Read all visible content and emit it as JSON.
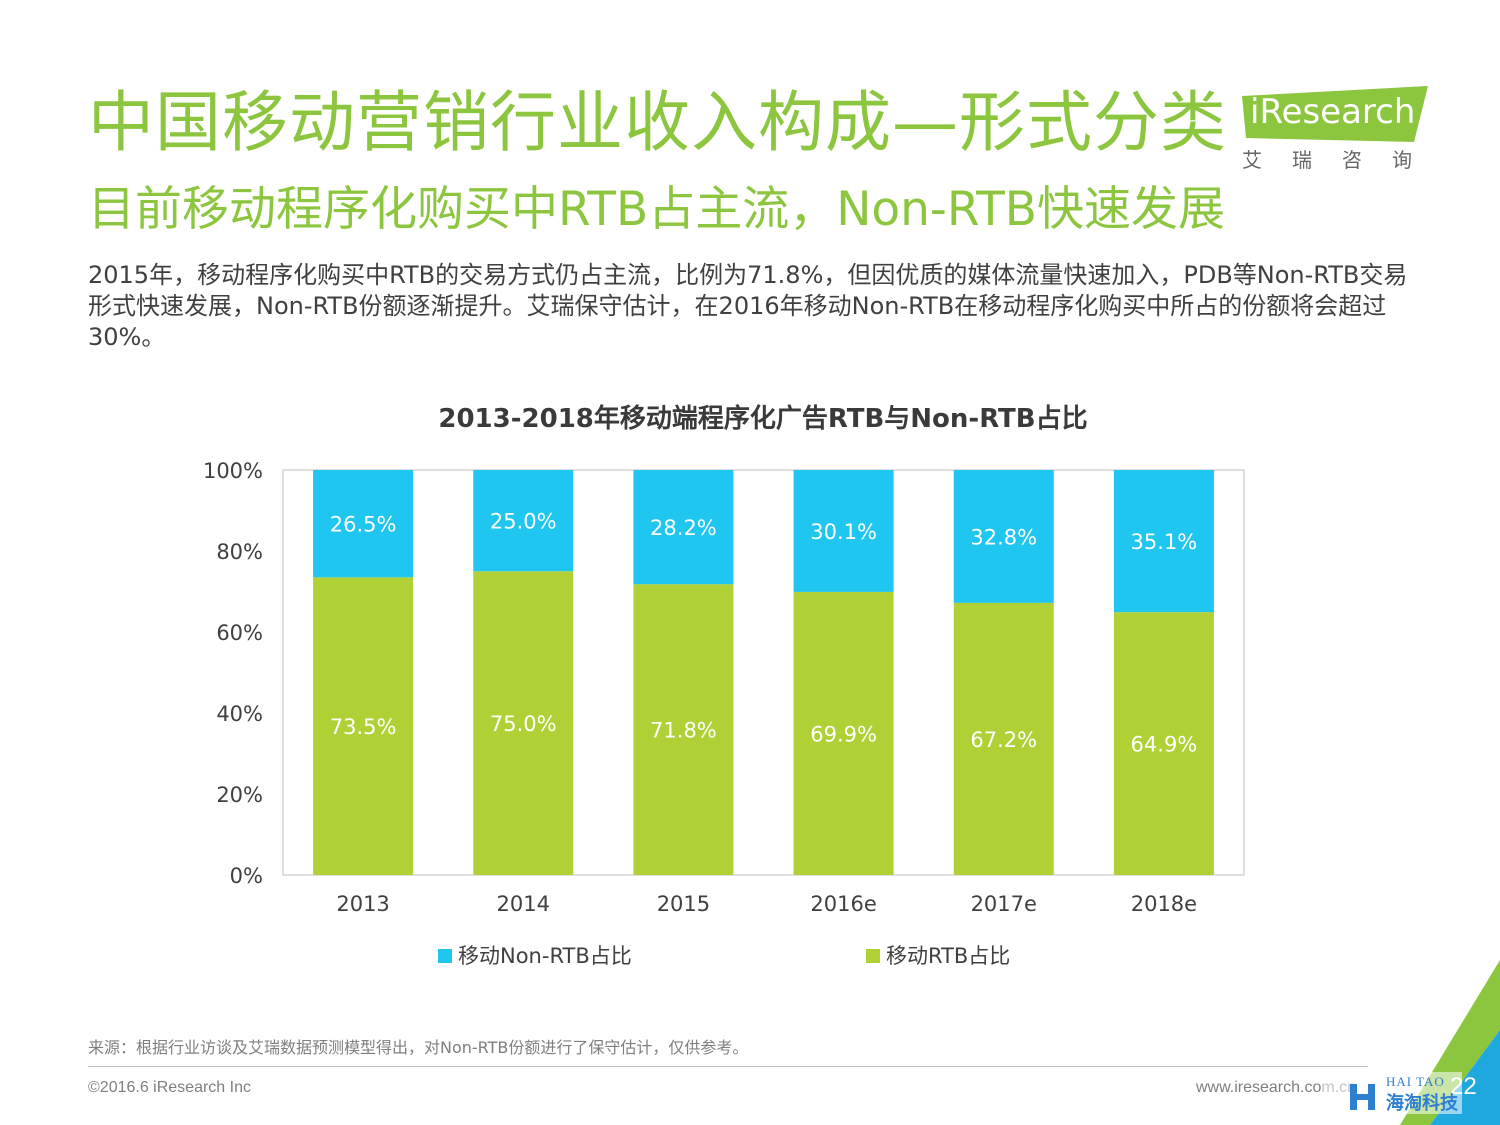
{
  "header": {
    "title": "中国移动营销行业收入构成—形式分类",
    "subtitle": "目前移动程序化购买中RTB占主流，Non-RTB快速发展"
  },
  "logo": {
    "word": "iResearch",
    "cn": "艾瑞咨询",
    "color": "#8cc63f"
  },
  "intro": "2015年，移动程序化购买中RTB的交易方式仍占主流，比例为71.8%，但因优质的媒体流量快速加入，PDB等Non-RTB交易形式快速发展，Non-RTB份额逐渐提升。艾瑞保守估计，在2016年移动Non-RTB在移动程序化购买中所占的份额将会超过30%。",
  "chart_data": {
    "type": "bar",
    "stacked": true,
    "title": "2013-2018年移动端程序化广告RTB与Non-RTB占比",
    "categories": [
      "2013",
      "2014",
      "2015",
      "2016e",
      "2017e",
      "2018e"
    ],
    "series": [
      {
        "name": "移动RTB占比",
        "color": "#b0d135",
        "values": [
          73.5,
          75.0,
          71.8,
          69.9,
          67.2,
          64.9
        ],
        "labels": [
          "73.5%",
          "75.0%",
          "71.8%",
          "69.9%",
          "67.2%",
          "64.9%"
        ]
      },
      {
        "name": "移动Non-RTB占比",
        "color": "#1fc6ef",
        "values": [
          26.5,
          25.0,
          28.2,
          30.1,
          32.8,
          35.1
        ],
        "labels": [
          "26.5%",
          "25.0%",
          "28.2%",
          "30.1%",
          "32.8%",
          "35.1%"
        ]
      }
    ],
    "ylim": [
      0,
      100
    ],
    "yticks": [
      "0%",
      "20%",
      "40%",
      "60%",
      "80%",
      "100%"
    ],
    "legend_position": "bottom",
    "legend_order": [
      "移动Non-RTB占比",
      "移动RTB占比"
    ],
    "grid": false
  },
  "footer": {
    "source": "来源：根据行业访谈及艾瑞数据预测模型得出，对Non-RTB份额进行了保守估计，仅供参考。",
    "copyright": "©2016.6 iResearch Inc",
    "website": "www.iresearch.com.cn",
    "page": "22"
  },
  "watermark": {
    "top": "HAI TAO",
    "bottom": "海淘科技",
    "color": "#2e7fd0"
  },
  "accent_colors": {
    "green": "#8cc63f",
    "blue": "#1fa8e0"
  }
}
